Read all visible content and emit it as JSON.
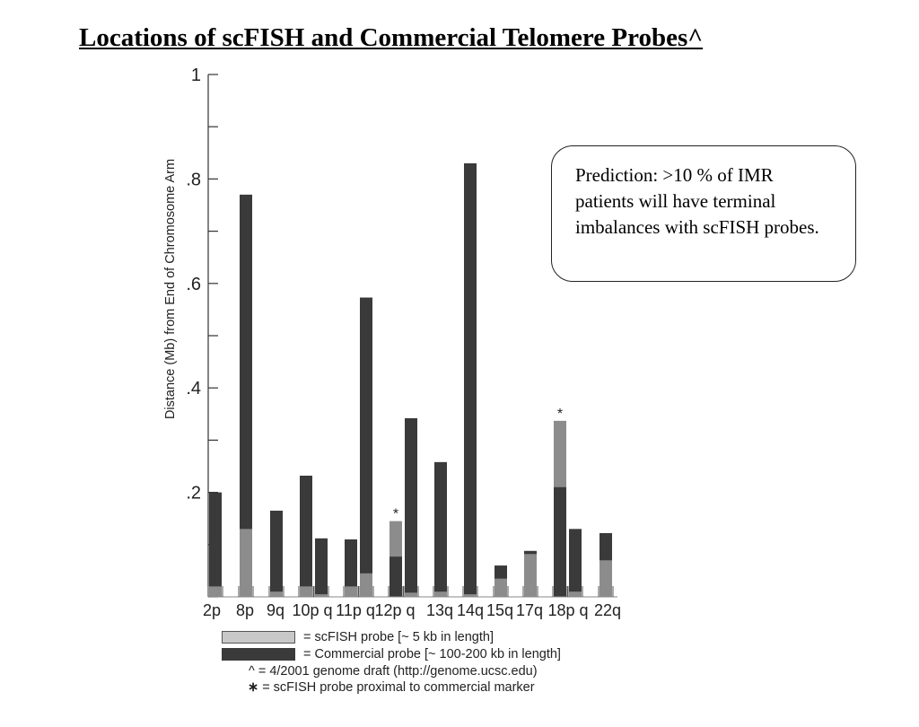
{
  "slide": {
    "title": "Locations of scFISH and Commercial Telomere Probes^"
  },
  "callout": {
    "text": "Prediction:  >10 % of  IMR patients will have terminal imbalances with scFISH probes."
  },
  "colors": {
    "scfish": "#8c8c8c",
    "scfish_legend": "#c8c8c8",
    "commercial": "#3a3a3a"
  },
  "chart_data": {
    "type": "bar",
    "ylabel": "Distance (Mb) from End of Chromosome Arm",
    "ylim": [
      0,
      1
    ],
    "y_tick_labels": [
      {
        "value": 1.0,
        "label": "1"
      },
      {
        "value": 0.8,
        "label": ".8"
      },
      {
        "value": 0.6,
        "label": ".6"
      },
      {
        "value": 0.4,
        "label": ".4"
      },
      {
        "value": 0.2,
        "label": ".2"
      }
    ],
    "x_groups": [
      "2p",
      "8p",
      "9q",
      "10p q",
      "11p q",
      "12p q",
      "13q",
      "14q",
      "15q",
      "17q",
      "18p q",
      "22q"
    ],
    "bars": [
      {
        "group": "2p",
        "arm": "p",
        "commercial": 0.2,
        "scfish": 0.02
      },
      {
        "group": "8p",
        "arm": "p",
        "commercial": 0.77,
        "scfish": 0.13
      },
      {
        "group": "9q",
        "arm": "q",
        "commercial": 0.165,
        "scfish": 0.01
      },
      {
        "group": "10p q",
        "arm": "p",
        "commercial": 0.232,
        "scfish": 0.02
      },
      {
        "group": "10p q",
        "arm": "q",
        "commercial": 0.112,
        "scfish": 0.005
      },
      {
        "group": "11p q",
        "arm": "p",
        "commercial": 0.11,
        "scfish": 0.02
      },
      {
        "group": "11p q",
        "arm": "q",
        "commercial": 0.573,
        "scfish": 0.045
      },
      {
        "group": "12p q",
        "arm": "p",
        "commercial": 0.077,
        "scfish": 0.145,
        "marker": "*"
      },
      {
        "group": "12p q",
        "arm": "q",
        "commercial": 0.342,
        "scfish": 0.008
      },
      {
        "group": "13q",
        "arm": "q",
        "commercial": 0.258,
        "scfish": 0.01
      },
      {
        "group": "14q",
        "arm": "q",
        "commercial": 0.83,
        "scfish": 0.005
      },
      {
        "group": "15q",
        "arm": "q",
        "commercial": 0.06,
        "scfish": 0.035
      },
      {
        "group": "17q",
        "arm": "q",
        "commercial": 0.088,
        "scfish": 0.082
      },
      {
        "group": "18p q",
        "arm": "p",
        "commercial": 0.21,
        "scfish": 0.337,
        "marker": "*"
      },
      {
        "group": "18p q",
        "arm": "q",
        "commercial": 0.13,
        "scfish": 0.01
      },
      {
        "group": "22q",
        "arm": "q",
        "commercial": 0.122,
        "scfish": 0.07
      }
    ],
    "legend": {
      "scfish": "= scFISH probe [~ 5 kb in length]",
      "commercial": "= Commercial probe [~ 100-200 kb in length]",
      "note1": "^ = 4/2001 genome draft (http://genome.ucsc.edu)",
      "note2": "= scFISH probe proximal to commercial marker",
      "note2_symbol": "∗"
    }
  }
}
